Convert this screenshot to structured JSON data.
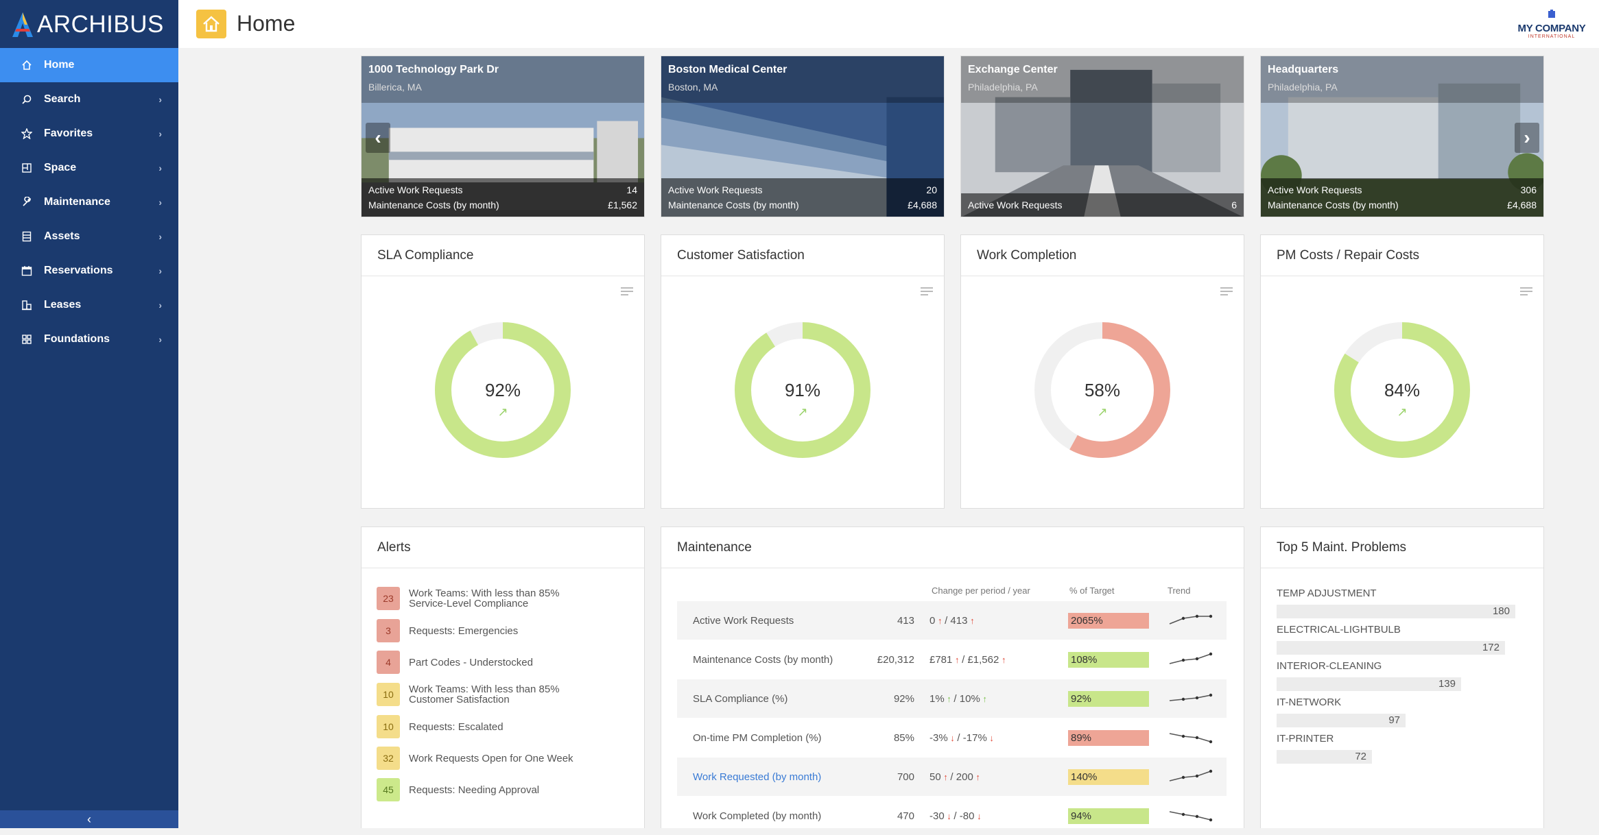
{
  "app": {
    "logo_text": "ARCHIBUS",
    "title": "Home",
    "company_line1": "MY COMPANY",
    "company_line2": "INTERNATIONAL"
  },
  "sidebar": {
    "items": [
      {
        "label": "Home",
        "icon": "home-icon"
      },
      {
        "label": "Search",
        "icon": "search-icon"
      },
      {
        "label": "Favorites",
        "icon": "star-icon"
      },
      {
        "label": "Space",
        "icon": "floorplan-icon"
      },
      {
        "label": "Maintenance",
        "icon": "wrench-icon"
      },
      {
        "label": "Assets",
        "icon": "list-icon"
      },
      {
        "label": "Reservations",
        "icon": "calendar-icon"
      },
      {
        "label": "Leases",
        "icon": "building-icon"
      },
      {
        "label": "Foundations",
        "icon": "grid-icon"
      }
    ],
    "collapse_glyph": "‹"
  },
  "buildings": [
    {
      "name": "1000 Technology Park Dr",
      "city": "Billerica, MA",
      "rows": [
        {
          "label": "Active Work Requests",
          "value": "14"
        },
        {
          "label": "Maintenance Costs (by month)",
          "value": "£1,562"
        }
      ]
    },
    {
      "name": "Boston Medical Center",
      "city": "Boston, MA",
      "rows": [
        {
          "label": "Active Work Requests",
          "value": "20"
        },
        {
          "label": "Maintenance Costs (by month)",
          "value": "£4,688"
        }
      ]
    },
    {
      "name": "Exchange Center",
      "city": "Philadelphia, PA",
      "rows": [
        {
          "label": "Active Work Requests",
          "value": "6"
        }
      ]
    },
    {
      "name": "Headquarters",
      "city": "Philadelphia, PA",
      "rows": [
        {
          "label": "Active Work Requests",
          "value": "306"
        },
        {
          "label": "Maintenance Costs (by month)",
          "value": "£4,688"
        }
      ]
    }
  ],
  "kpis": [
    {
      "title": "SLA Compliance",
      "value": "92%",
      "fraction": 0.92,
      "color": "#c8e68a"
    },
    {
      "title": "Customer Satisfaction",
      "value": "91%",
      "fraction": 0.91,
      "color": "#c8e68a"
    },
    {
      "title": "Work Completion",
      "value": "58%",
      "fraction": 0.58,
      "color": "#eea596"
    },
    {
      "title": "PM Costs / Repair Costs",
      "value": "84%",
      "fraction": 0.84,
      "color": "#c8e68a"
    }
  ],
  "alerts": {
    "title": "Alerts",
    "items": [
      {
        "count": "23",
        "level": "red",
        "text": "Work Teams: With less than 85% Service-Level Compliance"
      },
      {
        "count": "3",
        "level": "red",
        "text": "Requests: Emergencies"
      },
      {
        "count": "4",
        "level": "red",
        "text": "Part Codes - Understocked"
      },
      {
        "count": "10",
        "level": "yel",
        "text": "Work Teams: With less than 85% Customer Satisfaction"
      },
      {
        "count": "10",
        "level": "yel",
        "text": "Requests: Escalated"
      },
      {
        "count": "32",
        "level": "yel",
        "text": "Work Requests Open for One Week"
      },
      {
        "count": "45",
        "level": "grn",
        "text": "Requests: Needing Approval"
      }
    ]
  },
  "maintenance": {
    "title": "Maintenance",
    "col_change": "Change per period / year",
    "col_target": "% of Target",
    "col_trend": "Trend",
    "rows": [
      {
        "label": "Active Work Requests",
        "value": "413",
        "c1": "0",
        "d1": "up-red",
        "c2": "413",
        "d2": "up-red",
        "target": "2065%",
        "tcolor": "#eea596",
        "trend": [
          0.25,
          0.65,
          0.8,
          0.8
        ]
      },
      {
        "label": "Maintenance Costs (by month)",
        "value": "£20,312",
        "c1": "£781",
        "d1": "up-red",
        "c2": "£1,562",
        "d2": "up-red",
        "target": "108%",
        "tcolor": "#c8e68a",
        "trend": [
          0.2,
          0.45,
          0.55,
          0.9
        ]
      },
      {
        "label": "SLA Compliance (%)",
        "value": "92%",
        "c1": "1%",
        "d1": "up-green",
        "c2": "10%",
        "d2": "up-green",
        "target": "92%",
        "tcolor": "#c8e68a",
        "trend": [
          0.35,
          0.45,
          0.55,
          0.75
        ]
      },
      {
        "label": "On-time PM Completion (%)",
        "value": "85%",
        "c1": "-3%",
        "d1": "down-red",
        "c2": "-17%",
        "d2": "down-red",
        "target": "89%",
        "tcolor": "#eea596",
        "trend": [
          0.8,
          0.6,
          0.5,
          0.2
        ]
      },
      {
        "label": "Work Requested (by month)",
        "value": "700",
        "c1": "50",
        "d1": "up-red",
        "c2": "200",
        "d2": "up-red",
        "target": "140%",
        "tcolor": "#f4dd8a",
        "trend": [
          0.2,
          0.45,
          0.55,
          0.9
        ]
      },
      {
        "label": "Work Completed (by month)",
        "value": "470",
        "c1": "-30",
        "d1": "down-red",
        "c2": "-80",
        "d2": "down-red",
        "target": "94%",
        "tcolor": "#c8e68a",
        "trend": [
          0.8,
          0.6,
          0.45,
          0.2
        ]
      }
    ]
  },
  "top5": {
    "title": "Top 5 Maint. Problems",
    "items": [
      {
        "label": "TEMP ADJUSTMENT",
        "value": "180"
      },
      {
        "label": "ELECTRICAL-LIGHTBULB",
        "value": "172"
      },
      {
        "label": "INTERIOR-CLEANING",
        "value": "139"
      },
      {
        "label": "IT-NETWORK",
        "value": "97"
      },
      {
        "label": "IT-PRINTER",
        "value": "72"
      }
    ]
  }
}
